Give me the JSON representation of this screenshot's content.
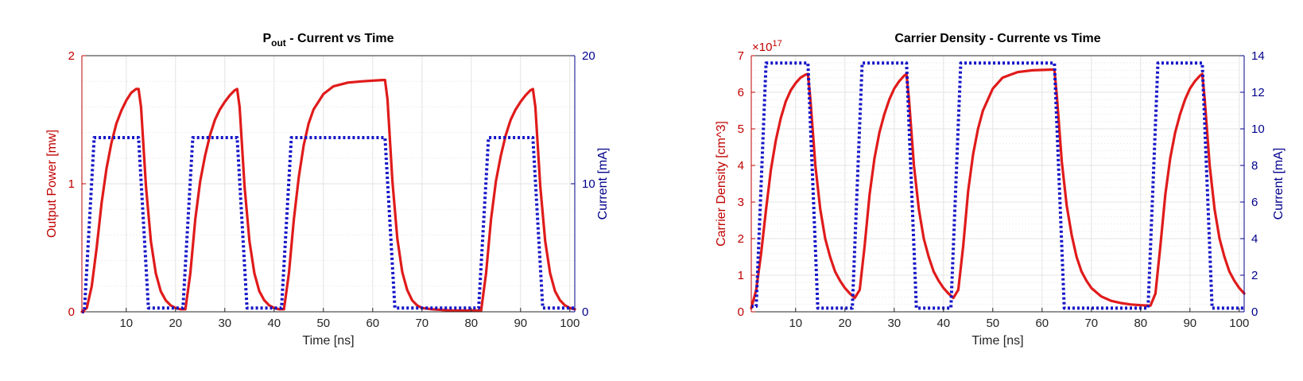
{
  "colors": {
    "left_axis": "#c00000",
    "right_axis": "#00008b",
    "red_series": "#e01b1b",
    "blue_series": "#1515c8",
    "axis_black": "#262626",
    "grid": "#e3e3e3"
  },
  "chart_data": [
    {
      "type": "line",
      "title": {
        "main": "P",
        "sub": "out",
        "rest": " - Current vs Time"
      },
      "xlabel": "Time [ns]",
      "ylabel_left": "Output Power [mw]",
      "ylabel_right": "Current [mA]",
      "xlim": [
        1,
        101
      ],
      "ylim_left": [
        0,
        2
      ],
      "ylim_right": [
        0,
        20
      ],
      "x_ticks": [
        "10",
        "20",
        "30",
        "40",
        "50",
        "60",
        "70",
        "80",
        "90",
        "100"
      ],
      "x_tick_values": [
        10,
        20,
        30,
        40,
        50,
        60,
        70,
        80,
        90,
        100
      ],
      "y_left_ticks": [
        "0",
        "1",
        "2"
      ],
      "y_left_tick_values": [
        0,
        1,
        2
      ],
      "y_right_ticks": [
        "0",
        "10",
        "20"
      ],
      "y_right_tick_values": [
        0,
        10,
        20
      ],
      "y_left_minor_step": 0.2,
      "grid": true,
      "series": [
        {
          "axis": "left",
          "style": "solid",
          "points": [
            [
              1,
              0
            ],
            [
              2,
              0.03
            ],
            [
              3,
              0.2
            ],
            [
              4,
              0.5
            ],
            [
              5,
              0.85
            ],
            [
              6,
              1.12
            ],
            [
              7,
              1.32
            ],
            [
              8,
              1.47
            ],
            [
              9,
              1.57
            ],
            [
              10,
              1.65
            ],
            [
              11,
              1.71
            ],
            [
              12,
              1.74
            ],
            [
              12.5,
              1.74
            ],
            [
              13,
              1.6
            ],
            [
              14,
              0.98
            ],
            [
              15,
              0.55
            ],
            [
              16,
              0.3
            ],
            [
              17,
              0.16
            ],
            [
              18,
              0.09
            ],
            [
              19,
              0.05
            ],
            [
              20,
              0.03
            ],
            [
              21,
              0.02
            ],
            [
              22,
              0.02
            ],
            [
              23,
              0.3
            ],
            [
              24,
              0.72
            ],
            [
              25,
              1.02
            ],
            [
              26,
              1.22
            ],
            [
              27,
              1.38
            ],
            [
              28,
              1.5
            ],
            [
              29,
              1.58
            ],
            [
              30,
              1.64
            ],
            [
              31,
              1.69
            ],
            [
              32,
              1.73
            ],
            [
              32.5,
              1.74
            ],
            [
              33,
              1.6
            ],
            [
              34,
              0.98
            ],
            [
              35,
              0.55
            ],
            [
              36,
              0.3
            ],
            [
              37,
              0.16
            ],
            [
              38,
              0.09
            ],
            [
              39,
              0.05
            ],
            [
              40,
              0.03
            ],
            [
              41,
              0.02
            ],
            [
              42,
              0.02
            ],
            [
              43,
              0.3
            ],
            [
              44,
              0.72
            ],
            [
              45,
              1.05
            ],
            [
              46,
              1.3
            ],
            [
              47,
              1.47
            ],
            [
              48,
              1.58
            ],
            [
              50,
              1.7
            ],
            [
              52,
              1.76
            ],
            [
              55,
              1.79
            ],
            [
              58,
              1.8
            ],
            [
              62,
              1.81
            ],
            [
              62.5,
              1.81
            ],
            [
              63,
              1.66
            ],
            [
              64,
              1.02
            ],
            [
              65,
              0.57
            ],
            [
              66,
              0.31
            ],
            [
              67,
              0.17
            ],
            [
              68,
              0.09
            ],
            [
              69,
              0.05
            ],
            [
              70,
              0.03
            ],
            [
              72,
              0.02
            ],
            [
              76,
              0.01
            ],
            [
              80,
              0.01
            ],
            [
              82,
              0.01
            ],
            [
              83,
              0.3
            ],
            [
              84,
              0.72
            ],
            [
              85,
              1.02
            ],
            [
              86,
              1.22
            ],
            [
              87,
              1.38
            ],
            [
              88,
              1.5
            ],
            [
              89,
              1.58
            ],
            [
              90,
              1.64
            ],
            [
              91,
              1.69
            ],
            [
              92,
              1.73
            ],
            [
              92.5,
              1.74
            ],
            [
              93,
              1.6
            ],
            [
              94,
              0.98
            ],
            [
              95,
              0.55
            ],
            [
              96,
              0.3
            ],
            [
              97,
              0.16
            ],
            [
              98,
              0.09
            ],
            [
              99,
              0.05
            ],
            [
              100,
              0.03
            ],
            [
              101,
              0.02
            ]
          ]
        },
        {
          "axis": "right",
          "style": "dotted",
          "points": [
            [
              1,
              0
            ],
            [
              1.5,
              0
            ],
            [
              3.5,
              13.6
            ],
            [
              12.5,
              13.6
            ],
            [
              14.5,
              0.3
            ],
            [
              21.5,
              0.3
            ],
            [
              23.5,
              13.6
            ],
            [
              32.5,
              13.6
            ],
            [
              34.5,
              0.3
            ],
            [
              41.5,
              0.3
            ],
            [
              43.5,
              13.6
            ],
            [
              62.5,
              13.6
            ],
            [
              64.5,
              0.3
            ],
            [
              81.5,
              0.3
            ],
            [
              83.5,
              13.6
            ],
            [
              92.5,
              13.6
            ],
            [
              94.5,
              0.3
            ],
            [
              101,
              0.3
            ]
          ]
        }
      ]
    },
    {
      "type": "line",
      "title": {
        "main": "Carrier Density - Currente vs Time",
        "sub": "",
        "rest": ""
      },
      "xlabel": "Time [ns]",
      "ylabel_left": "Carrier Density [cm^3]",
      "ylabel_right": "Current [mA]",
      "exponent_label": {
        "base": "×10",
        "power": "17"
      },
      "xlim": [
        1,
        101
      ],
      "ylim_left": [
        0,
        7
      ],
      "ylim_right": [
        0,
        14
      ],
      "x_ticks": [
        "10",
        "20",
        "30",
        "40",
        "50",
        "60",
        "70",
        "80",
        "90",
        "100"
      ],
      "x_tick_values": [
        10,
        20,
        30,
        40,
        50,
        60,
        70,
        80,
        90,
        100
      ],
      "y_left_ticks": [
        "0",
        "1",
        "2",
        "3",
        "4",
        "5",
        "6",
        "7"
      ],
      "y_left_tick_values": [
        0,
        1,
        2,
        3,
        4,
        5,
        6,
        7
      ],
      "y_right_ticks": [
        "0",
        "2",
        "4",
        "6",
        "8",
        "10",
        "12",
        "14"
      ],
      "y_right_tick_values": [
        0,
        2,
        4,
        6,
        8,
        10,
        12,
        14
      ],
      "y_left_minor_step": 0.2,
      "grid": true,
      "series": [
        {
          "axis": "left",
          "style": "solid",
          "points": [
            [
              1,
              0.1
            ],
            [
              2,
              0.6
            ],
            [
              3,
              1.6
            ],
            [
              4,
              2.8
            ],
            [
              5,
              3.9
            ],
            [
              6,
              4.7
            ],
            [
              7,
              5.3
            ],
            [
              8,
              5.75
            ],
            [
              9,
              6.05
            ],
            [
              10,
              6.25
            ],
            [
              11,
              6.4
            ],
            [
              12,
              6.48
            ],
            [
              12.5,
              6.5
            ],
            [
              13,
              5.8
            ],
            [
              14,
              4.0
            ],
            [
              15,
              2.8
            ],
            [
              16,
              2.0
            ],
            [
              17,
              1.5
            ],
            [
              18,
              1.1
            ],
            [
              19,
              0.85
            ],
            [
              20,
              0.65
            ],
            [
              21,
              0.5
            ],
            [
              22,
              0.38
            ],
            [
              23,
              0.6
            ],
            [
              24,
              1.8
            ],
            [
              25,
              3.2
            ],
            [
              26,
              4.2
            ],
            [
              27,
              4.9
            ],
            [
              28,
              5.4
            ],
            [
              29,
              5.8
            ],
            [
              30,
              6.1
            ],
            [
              31,
              6.3
            ],
            [
              32,
              6.45
            ],
            [
              32.5,
              6.5
            ],
            [
              33,
              5.8
            ],
            [
              34,
              4.0
            ],
            [
              35,
              2.8
            ],
            [
              36,
              2.0
            ],
            [
              37,
              1.5
            ],
            [
              38,
              1.1
            ],
            [
              39,
              0.85
            ],
            [
              40,
              0.65
            ],
            [
              41,
              0.5
            ],
            [
              42,
              0.38
            ],
            [
              43,
              0.6
            ],
            [
              44,
              1.8
            ],
            [
              45,
              3.3
            ],
            [
              46,
              4.3
            ],
            [
              47,
              5.0
            ],
            [
              48,
              5.5
            ],
            [
              50,
              6.1
            ],
            [
              52,
              6.4
            ],
            [
              55,
              6.55
            ],
            [
              58,
              6.6
            ],
            [
              62,
              6.62
            ],
            [
              62.5,
              6.62
            ],
            [
              63,
              5.9
            ],
            [
              64,
              4.1
            ],
            [
              65,
              2.9
            ],
            [
              66,
              2.1
            ],
            [
              67,
              1.5
            ],
            [
              68,
              1.1
            ],
            [
              69,
              0.85
            ],
            [
              70,
              0.65
            ],
            [
              72,
              0.42
            ],
            [
              74,
              0.3
            ],
            [
              76,
              0.24
            ],
            [
              78,
              0.2
            ],
            [
              80,
              0.18
            ],
            [
              82,
              0.17
            ],
            [
              83,
              0.5
            ],
            [
              84,
              1.8
            ],
            [
              85,
              3.2
            ],
            [
              86,
              4.2
            ],
            [
              87,
              4.9
            ],
            [
              88,
              5.4
            ],
            [
              89,
              5.8
            ],
            [
              90,
              6.1
            ],
            [
              91,
              6.3
            ],
            [
              92,
              6.45
            ],
            [
              92.5,
              6.5
            ],
            [
              93,
              5.8
            ],
            [
              94,
              4.0
            ],
            [
              95,
              2.8
            ],
            [
              96,
              2.0
            ],
            [
              97,
              1.5
            ],
            [
              98,
              1.1
            ],
            [
              99,
              0.85
            ],
            [
              100,
              0.65
            ],
            [
              101,
              0.5
            ]
          ]
        },
        {
          "axis": "right",
          "style": "dotted",
          "points": [
            [
              1,
              0.3
            ],
            [
              2,
              0.3
            ],
            [
              4,
              13.6
            ],
            [
              12.5,
              13.6
            ],
            [
              14.5,
              0.2
            ],
            [
              21.5,
              0.2
            ],
            [
              23.5,
              13.6
            ],
            [
              32.5,
              13.6
            ],
            [
              34.5,
              0.2
            ],
            [
              41.5,
              0.2
            ],
            [
              43.5,
              13.6
            ],
            [
              62.5,
              13.6
            ],
            [
              64.5,
              0.2
            ],
            [
              81.5,
              0.2
            ],
            [
              83.5,
              13.6
            ],
            [
              92.5,
              13.6
            ],
            [
              94.5,
              0.2
            ],
            [
              101,
              0.2
            ]
          ]
        }
      ]
    }
  ]
}
